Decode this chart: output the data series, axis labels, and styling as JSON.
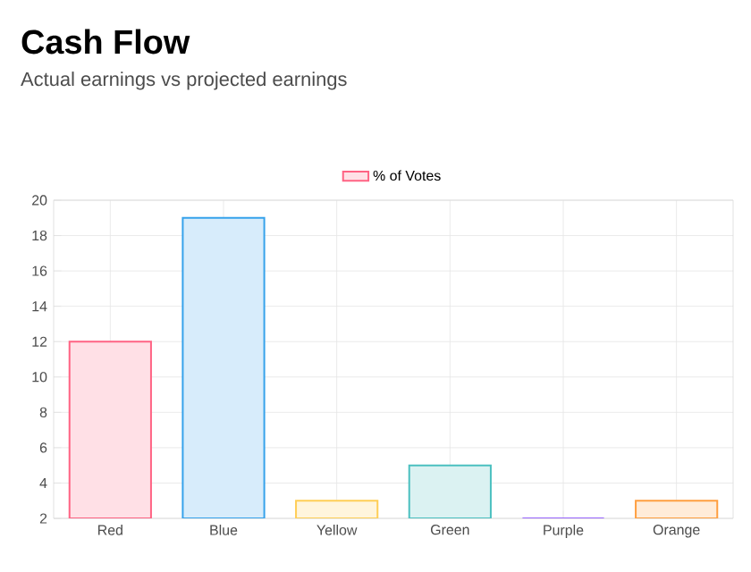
{
  "chart_data": {
    "type": "bar",
    "title": "Cash Flow",
    "subtitle": "Actual earnings vs projected earnings",
    "categories": [
      "Red",
      "Blue",
      "Yellow",
      "Green",
      "Purple",
      "Orange"
    ],
    "series": [
      {
        "name": "% of Votes",
        "values": [
          12,
          19,
          3,
          5,
          2,
          3
        ],
        "colors": [
          "#ff6384",
          "#36a2eb",
          "#ffce56",
          "#4bc0c0",
          "#9966ff",
          "#ff9f40"
        ]
      }
    ],
    "ylim": [
      2,
      20
    ],
    "yticks": [
      2,
      4,
      6,
      8,
      10,
      12,
      14,
      16,
      18,
      20
    ],
    "grid": true,
    "legend": "top"
  }
}
